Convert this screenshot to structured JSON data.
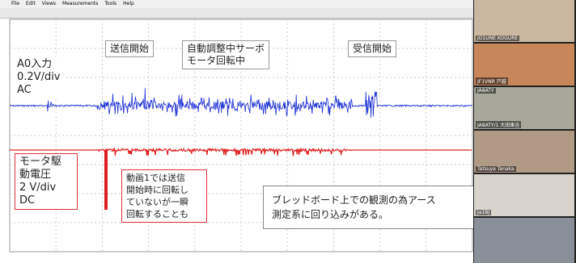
{
  "window": {
    "menu": [
      "File",
      "Edit",
      "Views",
      "Measurements",
      "Tools",
      "Help"
    ]
  },
  "annotations": {
    "tx_start": "送信開始",
    "servo": "自動調整中サーボ\nモータ回転中",
    "rx_start": "受信開始",
    "ch_a": "A0入力\n0.2V/div\nAC",
    "ch_b": "モータ駆\n動電圧\n 2 V/div\nDC",
    "note_video": "動画1では送信\n開始時に回転し\nていないが一瞬\n回転することも",
    "note_ground": "ブレッドボード上での観測の為アース\n測定系に回り込みがある。"
  },
  "participants": [
    "JO1UNE KOGURE",
    "JF1VNR 戸越",
    "JA8ATY",
    "JA8ATY/1 大田東吉",
    "Tatsuya Tanaka",
    "Ja1BJ"
  ]
}
